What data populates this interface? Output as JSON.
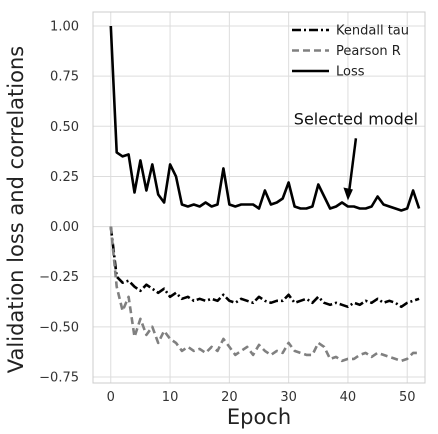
{
  "chart_data": {
    "type": "line",
    "xlabel": "Epoch",
    "ylabel": "Validation loss and correlations",
    "xlim": [
      -3,
      53
    ],
    "ylim": [
      -0.78,
      1.07
    ],
    "xticks": [
      0,
      10,
      20,
      30,
      40,
      50
    ],
    "yticks": [
      1.0,
      0.75,
      0.5,
      0.25,
      0.0,
      -0.25,
      -0.5,
      -0.75
    ],
    "ytick_labels": [
      "1.00",
      "0.75",
      "0.50",
      "0.25",
      "0.00",
      "−0.25",
      "−0.50",
      "−0.75"
    ],
    "grid": true,
    "legend_position": "top-right",
    "x": [
      0,
      1,
      2,
      3,
      4,
      5,
      6,
      7,
      8,
      9,
      10,
      11,
      12,
      13,
      14,
      15,
      16,
      17,
      18,
      19,
      20,
      21,
      22,
      23,
      24,
      25,
      26,
      27,
      28,
      29,
      30,
      31,
      32,
      33,
      34,
      35,
      36,
      37,
      38,
      39,
      40,
      41,
      42,
      43,
      44,
      45,
      46,
      47,
      48,
      49,
      50,
      51,
      52
    ],
    "series": [
      {
        "name": "Kendall tau",
        "color": "#000000",
        "style": "dashdot",
        "values": [
          0.0,
          -0.25,
          -0.28,
          -0.27,
          -0.3,
          -0.32,
          -0.29,
          -0.31,
          -0.33,
          -0.31,
          -0.35,
          -0.33,
          -0.36,
          -0.35,
          -0.37,
          -0.36,
          -0.37,
          -0.36,
          -0.37,
          -0.34,
          -0.37,
          -0.38,
          -0.36,
          -0.37,
          -0.38,
          -0.35,
          -0.37,
          -0.38,
          -0.37,
          -0.37,
          -0.34,
          -0.38,
          -0.37,
          -0.36,
          -0.38,
          -0.35,
          -0.38,
          -0.39,
          -0.38,
          -0.39,
          -0.4,
          -0.38,
          -0.39,
          -0.37,
          -0.38,
          -0.36,
          -0.38,
          -0.37,
          -0.38,
          -0.4,
          -0.38,
          -0.37,
          -0.36
        ]
      },
      {
        "name": "Pearson R",
        "color": "#808080",
        "style": "dashed",
        "values": [
          0.0,
          -0.3,
          -0.42,
          -0.35,
          -0.55,
          -0.46,
          -0.54,
          -0.5,
          -0.58,
          -0.52,
          -0.56,
          -0.58,
          -0.62,
          -0.6,
          -0.62,
          -0.61,
          -0.63,
          -0.6,
          -0.62,
          -0.56,
          -0.6,
          -0.64,
          -0.62,
          -0.6,
          -0.64,
          -0.59,
          -0.62,
          -0.64,
          -0.62,
          -0.63,
          -0.58,
          -0.62,
          -0.63,
          -0.64,
          -0.64,
          -0.58,
          -0.6,
          -0.66,
          -0.65,
          -0.67,
          -0.66,
          -0.66,
          -0.64,
          -0.63,
          -0.65,
          -0.63,
          -0.64,
          -0.65,
          -0.66,
          -0.67,
          -0.66,
          -0.63,
          -0.63
        ]
      },
      {
        "name": "Loss",
        "color": "#000000",
        "style": "solid",
        "values": [
          1.0,
          0.37,
          0.35,
          0.36,
          0.17,
          0.33,
          0.18,
          0.31,
          0.16,
          0.12,
          0.31,
          0.25,
          0.11,
          0.1,
          0.11,
          0.1,
          0.12,
          0.1,
          0.11,
          0.29,
          0.11,
          0.1,
          0.11,
          0.11,
          0.11,
          0.09,
          0.18,
          0.11,
          0.12,
          0.14,
          0.22,
          0.1,
          0.09,
          0.09,
          0.1,
          0.21,
          0.15,
          0.09,
          0.1,
          0.12,
          0.1,
          0.1,
          0.09,
          0.09,
          0.1,
          0.15,
          0.11,
          0.1,
          0.09,
          0.08,
          0.09,
          0.18,
          0.09
        ]
      }
    ],
    "annotation": {
      "text": "Selected model",
      "target_x": 40,
      "target_y": 0.1,
      "text_x": 40,
      "text_y": 0.5
    }
  }
}
